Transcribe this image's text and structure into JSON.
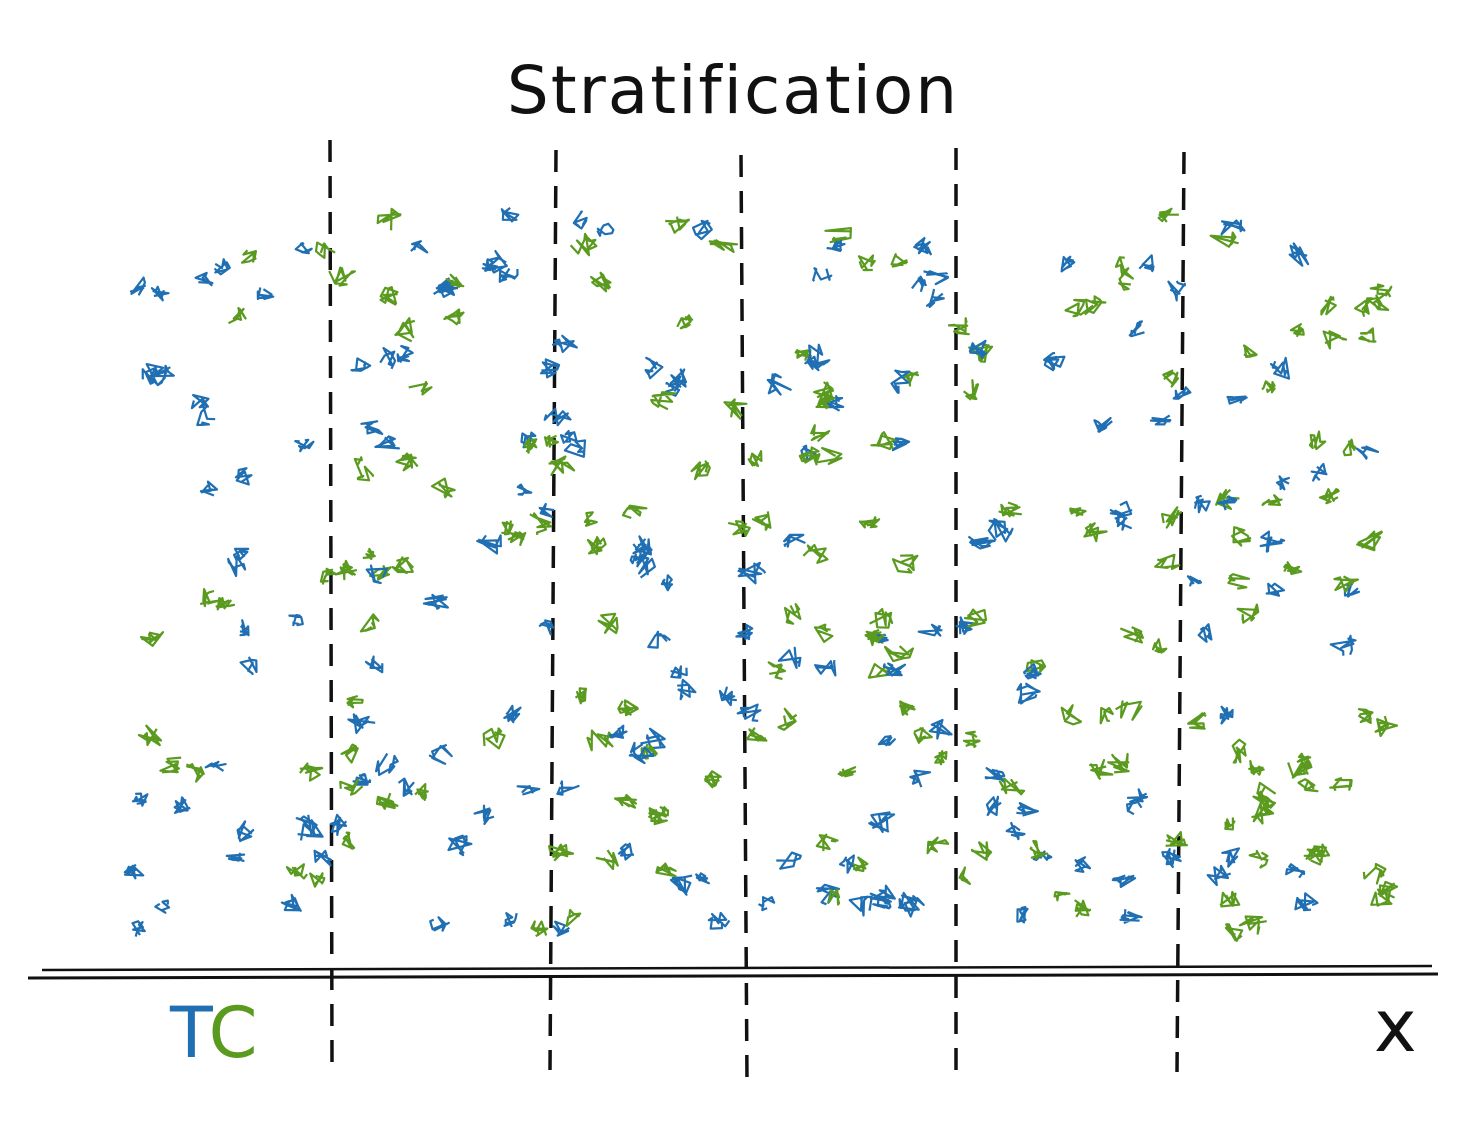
{
  "title": "Stratification",
  "x_axis_label": "x",
  "legend": {
    "treated_letter": "T",
    "control_letter": "C"
  },
  "colors": {
    "treated": "#1f6fb2",
    "control": "#5a9a1f",
    "ink": "#111111"
  },
  "strata_boundaries_count": 5,
  "points": {
    "treated_count": 175,
    "control_count": 175
  }
}
